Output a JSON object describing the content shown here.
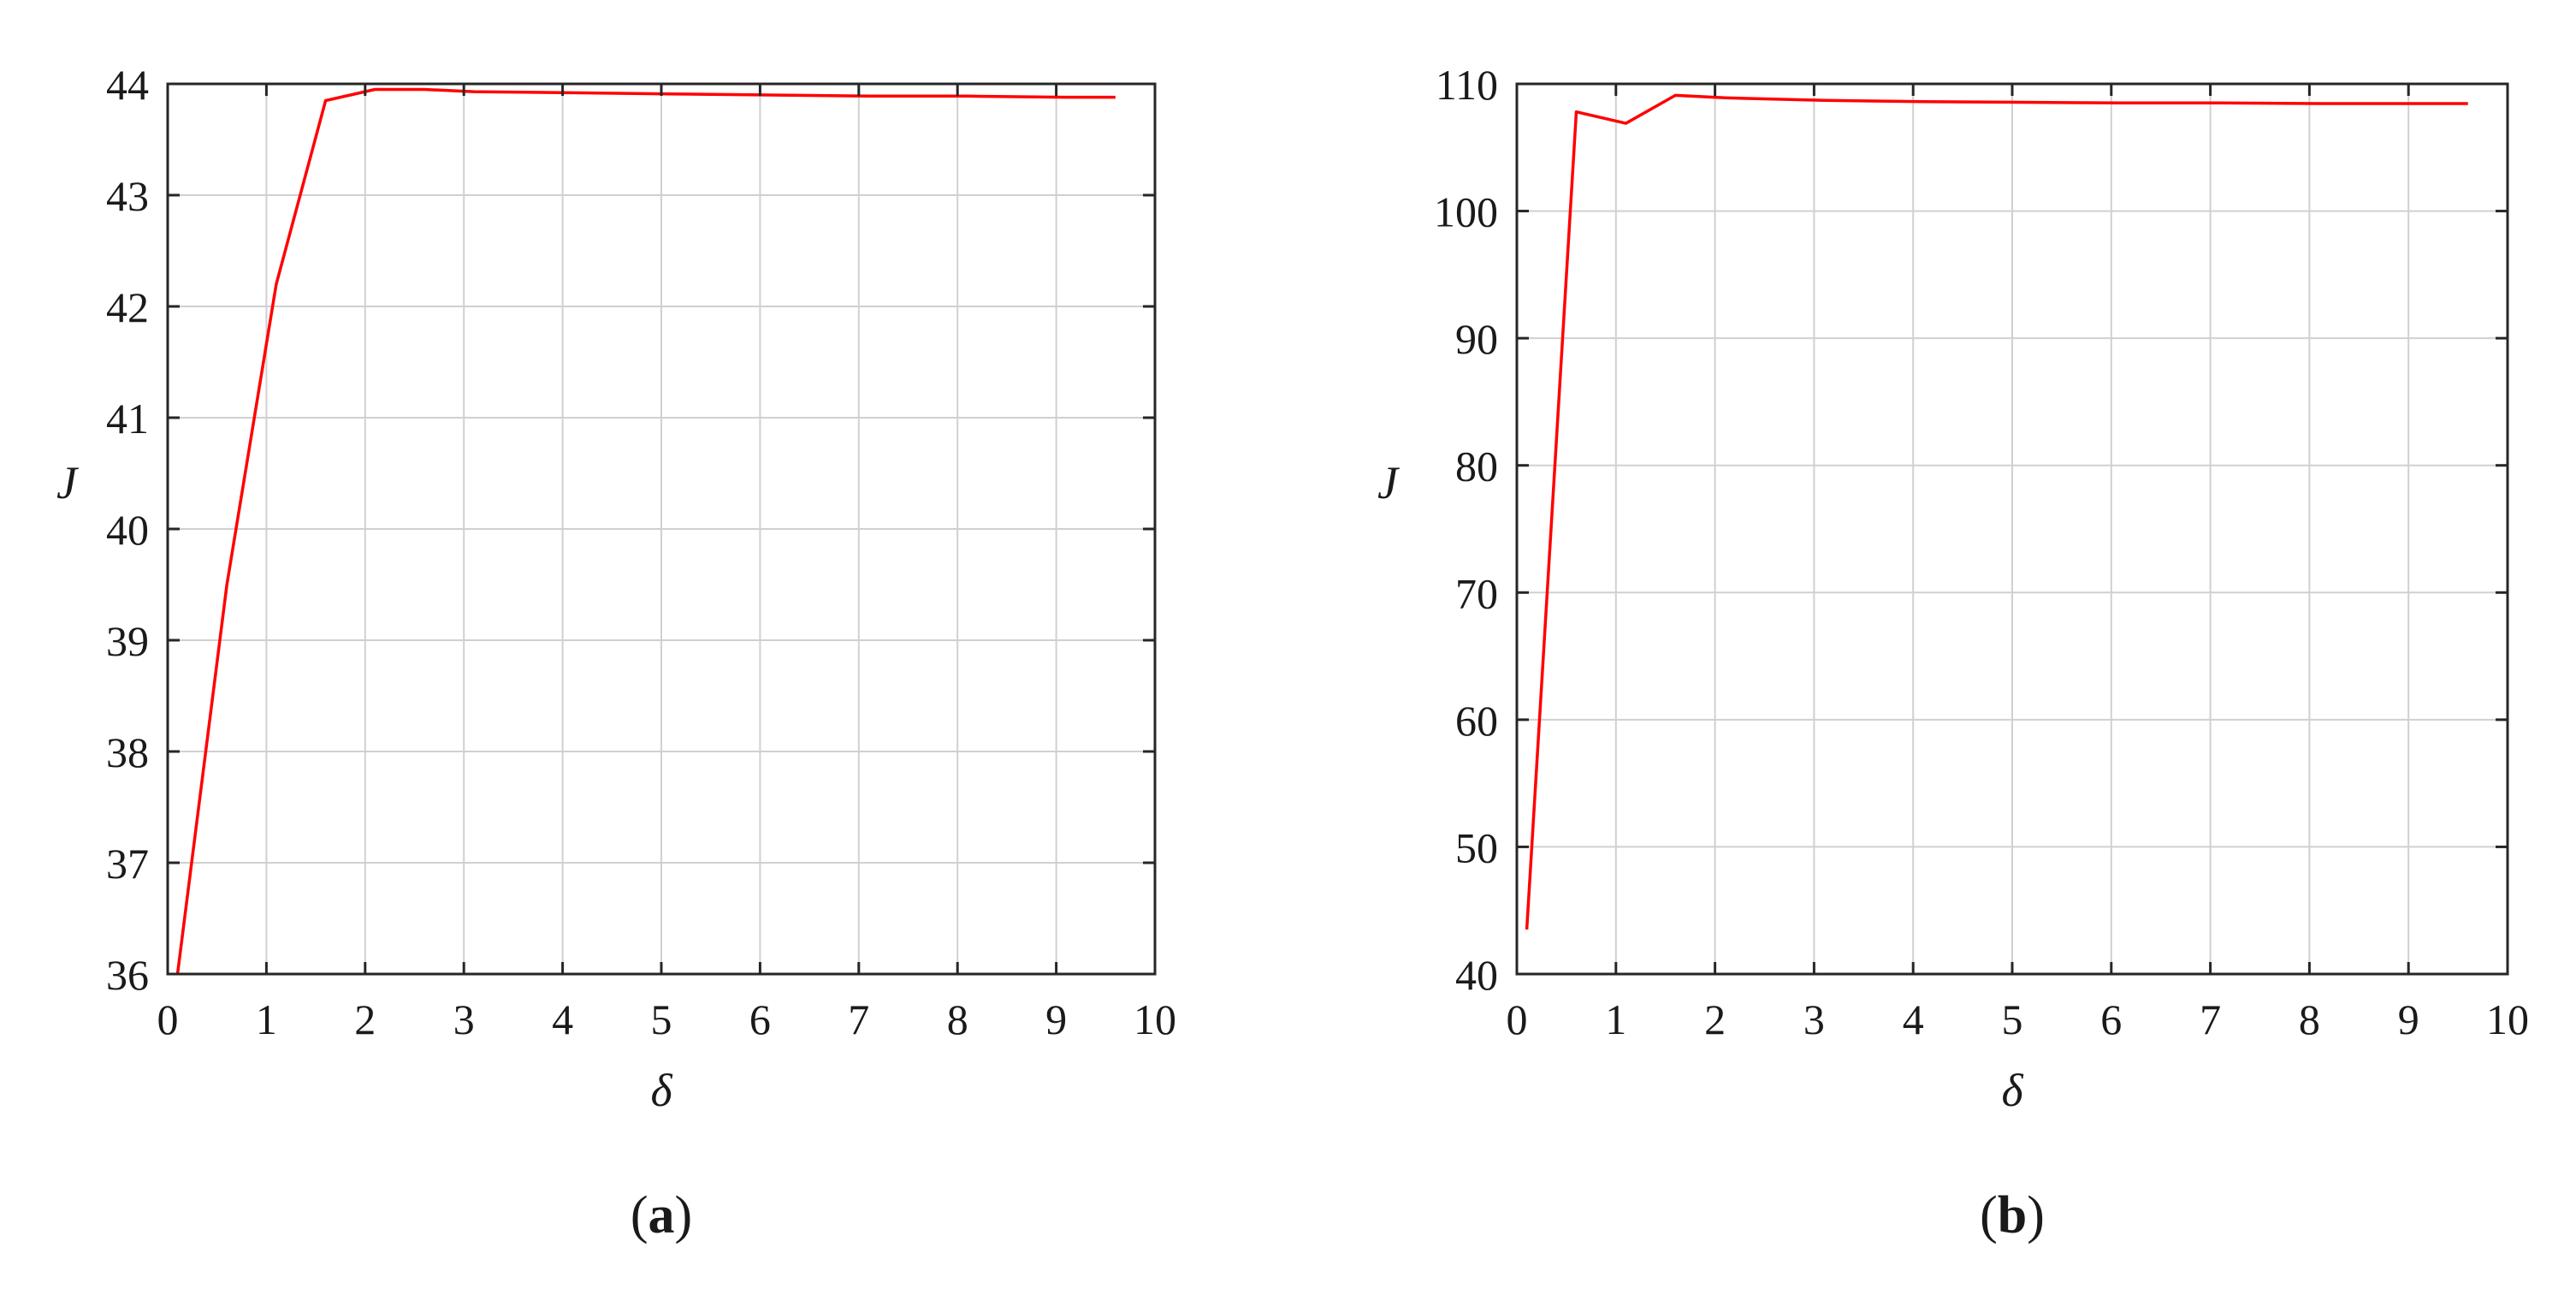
{
  "chart_data": [
    {
      "type": "line",
      "panel_label": "a",
      "xlabel": "δ",
      "ylabel": "J",
      "xlim": [
        0,
        10
      ],
      "ylim": [
        36,
        44
      ],
      "x_ticks": [
        "0",
        "1",
        "2",
        "3",
        "4",
        "5",
        "6",
        "7",
        "8",
        "9",
        "10"
      ],
      "y_ticks": [
        "36",
        "37",
        "38",
        "39",
        "40",
        "41",
        "42",
        "43",
        "44"
      ],
      "grid": true,
      "color": "#ff0000",
      "series": [
        {
          "x": [
            0.1,
            0.6,
            1.1,
            1.6,
            2.1,
            2.6,
            3.1,
            4.1,
            5.1,
            6.1,
            7.1,
            8.1,
            9.1,
            9.6
          ],
          "values": [
            36.0,
            39.5,
            42.2,
            43.85,
            43.95,
            43.95,
            43.93,
            43.92,
            43.91,
            43.9,
            43.89,
            43.89,
            43.88,
            43.88
          ]
        }
      ]
    },
    {
      "type": "line",
      "panel_label": "b",
      "xlabel": "δ",
      "ylabel": "J",
      "xlim": [
        0,
        10
      ],
      "ylim": [
        40,
        110
      ],
      "x_ticks": [
        "0",
        "1",
        "2",
        "3",
        "4",
        "5",
        "6",
        "7",
        "8",
        "9",
        "10"
      ],
      "y_ticks": [
        "40",
        "50",
        "60",
        "70",
        "80",
        "90",
        "100",
        "110"
      ],
      "grid": true,
      "color": "#ff0000",
      "series": [
        {
          "x": [
            0.1,
            0.6,
            1.1,
            1.6,
            2.1,
            3.1,
            4.1,
            5.1,
            6.1,
            7.1,
            8.1,
            9.1,
            9.6
          ],
          "values": [
            43.5,
            107.8,
            106.9,
            109.1,
            108.9,
            108.7,
            108.6,
            108.55,
            108.5,
            108.5,
            108.45,
            108.45,
            108.45
          ]
        }
      ]
    }
  ]
}
